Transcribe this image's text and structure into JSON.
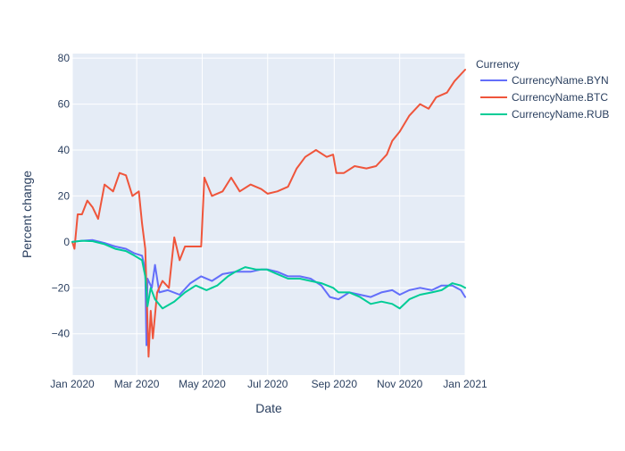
{
  "chart_data": {
    "type": "line",
    "title": "",
    "xlabel": "Date",
    "ylabel": "Percent change",
    "x_ticks": [
      "Jan 2020",
      "Mar 2020",
      "May 2020",
      "Jul 2020",
      "Sep 2020",
      "Nov 2020",
      "Jan 2021"
    ],
    "y_ticks": [
      "−40",
      "−20",
      "0",
      "20",
      "40",
      "60",
      "80"
    ],
    "xlim": [
      "2020-01-01",
      "2021-01-01"
    ],
    "ylim": [
      -58,
      82
    ],
    "grid": true,
    "legend_title": "Currency",
    "legend_position": "right",
    "series": [
      {
        "name": "CurrencyName.BYN",
        "color": "#636efa",
        "points": [
          [
            "2020-01-01",
            0
          ],
          [
            "2020-01-10",
            0.5
          ],
          [
            "2020-01-20",
            0.8
          ],
          [
            "2020-01-31",
            -0.5
          ],
          [
            "2020-02-10",
            -2
          ],
          [
            "2020-02-20",
            -3
          ],
          [
            "2020-02-28",
            -5
          ],
          [
            "2020-03-06",
            -6
          ],
          [
            "2020-03-09",
            -12
          ],
          [
            "2020-03-10",
            -45
          ],
          [
            "2020-03-11",
            -16
          ],
          [
            "2020-03-15",
            -20
          ],
          [
            "2020-03-18",
            -10
          ],
          [
            "2020-03-22",
            -22
          ],
          [
            "2020-03-30",
            -21
          ],
          [
            "2020-04-10",
            -23
          ],
          [
            "2020-04-20",
            -18
          ],
          [
            "2020-04-30",
            -15
          ],
          [
            "2020-05-10",
            -17
          ],
          [
            "2020-05-20",
            -14
          ],
          [
            "2020-06-01",
            -13
          ],
          [
            "2020-06-15",
            -13
          ],
          [
            "2020-06-25",
            -12
          ],
          [
            "2020-07-01",
            -12
          ],
          [
            "2020-07-10",
            -13
          ],
          [
            "2020-07-20",
            -15
          ],
          [
            "2020-07-31",
            -15
          ],
          [
            "2020-08-10",
            -16
          ],
          [
            "2020-08-20",
            -19
          ],
          [
            "2020-08-28",
            -24
          ],
          [
            "2020-09-05",
            -25
          ],
          [
            "2020-09-15",
            -22
          ],
          [
            "2020-09-25",
            -23
          ],
          [
            "2020-10-05",
            -24
          ],
          [
            "2020-10-15",
            -22
          ],
          [
            "2020-10-25",
            -21
          ],
          [
            "2020-11-01",
            -23
          ],
          [
            "2020-11-10",
            -21
          ],
          [
            "2020-11-20",
            -20
          ],
          [
            "2020-12-01",
            -21
          ],
          [
            "2020-12-10",
            -19
          ],
          [
            "2020-12-20",
            -19
          ],
          [
            "2020-12-28",
            -21
          ],
          [
            "2021-01-01",
            -24
          ]
        ]
      },
      {
        "name": "CurrencyName.BTC",
        "color": "#ef553b",
        "points": [
          [
            "2020-01-01",
            0
          ],
          [
            "2020-01-03",
            -3
          ],
          [
            "2020-01-06",
            12
          ],
          [
            "2020-01-10",
            12
          ],
          [
            "2020-01-15",
            18
          ],
          [
            "2020-01-20",
            15
          ],
          [
            "2020-01-25",
            10
          ],
          [
            "2020-01-31",
            25
          ],
          [
            "2020-02-08",
            22
          ],
          [
            "2020-02-14",
            30
          ],
          [
            "2020-02-20",
            29
          ],
          [
            "2020-02-26",
            20
          ],
          [
            "2020-03-03",
            22
          ],
          [
            "2020-03-06",
            8
          ],
          [
            "2020-03-09",
            -3
          ],
          [
            "2020-03-12",
            -50
          ],
          [
            "2020-03-14",
            -30
          ],
          [
            "2020-03-16",
            -42
          ],
          [
            "2020-03-20",
            -22
          ],
          [
            "2020-03-25",
            -17
          ],
          [
            "2020-03-31",
            -20
          ],
          [
            "2020-04-05",
            2
          ],
          [
            "2020-04-10",
            -8
          ],
          [
            "2020-04-15",
            -2
          ],
          [
            "2020-04-25",
            -2
          ],
          [
            "2020-04-30",
            -2
          ],
          [
            "2020-05-03",
            28
          ],
          [
            "2020-05-10",
            20
          ],
          [
            "2020-05-20",
            22
          ],
          [
            "2020-05-28",
            28
          ],
          [
            "2020-06-05",
            22
          ],
          [
            "2020-06-15",
            25
          ],
          [
            "2020-06-25",
            23
          ],
          [
            "2020-07-01",
            21
          ],
          [
            "2020-07-10",
            22
          ],
          [
            "2020-07-20",
            24
          ],
          [
            "2020-07-28",
            32
          ],
          [
            "2020-08-05",
            37
          ],
          [
            "2020-08-15",
            40
          ],
          [
            "2020-08-25",
            37
          ],
          [
            "2020-08-31",
            38
          ],
          [
            "2020-09-03",
            30
          ],
          [
            "2020-09-10",
            30
          ],
          [
            "2020-09-20",
            33
          ],
          [
            "2020-10-01",
            32
          ],
          [
            "2020-10-10",
            33
          ],
          [
            "2020-10-20",
            38
          ],
          [
            "2020-10-25",
            44
          ],
          [
            "2020-11-01",
            48
          ],
          [
            "2020-11-10",
            55
          ],
          [
            "2020-11-20",
            60
          ],
          [
            "2020-11-28",
            58
          ],
          [
            "2020-12-05",
            63
          ],
          [
            "2020-12-15",
            65
          ],
          [
            "2020-12-22",
            70
          ],
          [
            "2021-01-01",
            75
          ]
        ]
      },
      {
        "name": "CurrencyName.RUB",
        "color": "#00cc96",
        "points": [
          [
            "2020-01-01",
            0
          ],
          [
            "2020-01-10",
            0.5
          ],
          [
            "2020-01-20",
            0.3
          ],
          [
            "2020-01-31",
            -1
          ],
          [
            "2020-02-10",
            -3
          ],
          [
            "2020-02-20",
            -4
          ],
          [
            "2020-02-28",
            -6
          ],
          [
            "2020-03-06",
            -8
          ],
          [
            "2020-03-09",
            -15
          ],
          [
            "2020-03-11",
            -28
          ],
          [
            "2020-03-14",
            -20
          ],
          [
            "2020-03-18",
            -25
          ],
          [
            "2020-03-25",
            -29
          ],
          [
            "2020-04-05",
            -26
          ],
          [
            "2020-04-15",
            -22
          ],
          [
            "2020-04-25",
            -19
          ],
          [
            "2020-05-05",
            -21
          ],
          [
            "2020-05-15",
            -19
          ],
          [
            "2020-05-25",
            -15
          ],
          [
            "2020-06-01",
            -13
          ],
          [
            "2020-06-10",
            -11
          ],
          [
            "2020-06-20",
            -12
          ],
          [
            "2020-06-30",
            -12
          ],
          [
            "2020-07-10",
            -14
          ],
          [
            "2020-07-20",
            -16
          ],
          [
            "2020-07-31",
            -16
          ],
          [
            "2020-08-10",
            -17
          ],
          [
            "2020-08-20",
            -18
          ],
          [
            "2020-08-31",
            -20
          ],
          [
            "2020-09-05",
            -22
          ],
          [
            "2020-09-15",
            -22
          ],
          [
            "2020-09-25",
            -24
          ],
          [
            "2020-10-05",
            -27
          ],
          [
            "2020-10-15",
            -26
          ],
          [
            "2020-10-25",
            -27
          ],
          [
            "2020-11-01",
            -29
          ],
          [
            "2020-11-10",
            -25
          ],
          [
            "2020-11-20",
            -23
          ],
          [
            "2020-12-01",
            -22
          ],
          [
            "2020-12-10",
            -21
          ],
          [
            "2020-12-20",
            -18
          ],
          [
            "2020-12-28",
            -19
          ],
          [
            "2021-01-01",
            -20
          ]
        ]
      }
    ]
  }
}
